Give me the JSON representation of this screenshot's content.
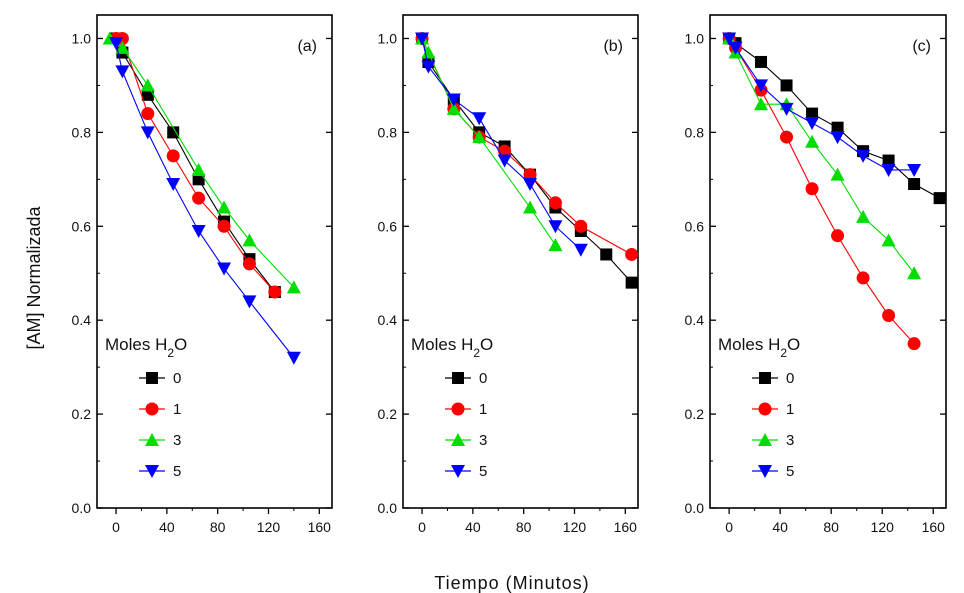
{
  "figure": {
    "ylabel": "[AM] Normalizada",
    "xlabel": "Tiempo (Minutos)",
    "legend_title": "Moles H",
    "legend_title_sub": "2",
    "legend_title_tail": "O"
  },
  "series_style": [
    {
      "name": "0",
      "color": "#000000",
      "marker": "square"
    },
    {
      "name": "1",
      "color": "#ff0000",
      "marker": "circle"
    },
    {
      "name": "3",
      "color": "#00dd00",
      "marker": "triangle-up"
    },
    {
      "name": "5",
      "color": "#0000ff",
      "marker": "triangle-down"
    }
  ],
  "chart_data": [
    {
      "type": "line",
      "panel_label": "(a)",
      "xlim": [
        -15,
        170
      ],
      "ylim": [
        0,
        1.05
      ],
      "xticks": [
        0,
        40,
        80,
        120,
        160
      ],
      "yticks": [
        0.0,
        0.2,
        0.4,
        0.6,
        0.8,
        1.0
      ],
      "legend_placement": "bottom-left",
      "series": [
        {
          "name": "0",
          "x": [
            0,
            5,
            25,
            45,
            65,
            85,
            105,
            125
          ],
          "y": [
            1.0,
            0.97,
            0.88,
            0.8,
            0.7,
            0.61,
            0.53,
            0.46
          ]
        },
        {
          "name": "1",
          "x": [
            0,
            5,
            25,
            45,
            65,
            85,
            105,
            125
          ],
          "y": [
            1.0,
            1.0,
            0.84,
            0.75,
            0.66,
            0.6,
            0.52,
            0.46
          ]
        },
        {
          "name": "3",
          "x": [
            -5,
            5,
            25,
            65,
            85,
            105,
            140
          ],
          "y": [
            1.0,
            0.98,
            0.9,
            0.72,
            0.64,
            0.57,
            0.47
          ]
        },
        {
          "name": "5",
          "x": [
            0,
            5,
            25,
            45,
            65,
            85,
            105,
            140
          ],
          "y": [
            0.99,
            0.93,
            0.8,
            0.69,
            0.59,
            0.51,
            0.44,
            0.32
          ]
        }
      ]
    },
    {
      "type": "line",
      "panel_label": "(b)",
      "xlim": [
        -15,
        170
      ],
      "ylim": [
        0,
        1.05
      ],
      "xticks": [
        0,
        40,
        80,
        120,
        160
      ],
      "yticks": [
        0.0,
        0.2,
        0.4,
        0.6,
        0.8,
        1.0
      ],
      "legend_placement": "bottom-left",
      "series": [
        {
          "name": "0",
          "x": [
            0,
            5,
            25,
            45,
            65,
            85,
            105,
            125,
            145,
            165
          ],
          "y": [
            1.0,
            0.95,
            0.87,
            0.8,
            0.77,
            0.71,
            0.64,
            0.59,
            0.54,
            0.48
          ]
        },
        {
          "name": "1",
          "x": [
            0,
            25,
            45,
            65,
            85,
            105,
            125,
            165
          ],
          "y": [
            1.0,
            0.85,
            0.79,
            0.76,
            0.71,
            0.65,
            0.6,
            0.54
          ]
        },
        {
          "name": "3",
          "x": [
            0,
            5,
            25,
            45,
            85,
            105
          ],
          "y": [
            1.0,
            0.97,
            0.85,
            0.79,
            0.64,
            0.56
          ]
        },
        {
          "name": "5",
          "x": [
            0,
            5,
            25,
            45,
            65,
            85,
            105,
            125
          ],
          "y": [
            1.0,
            0.94,
            0.87,
            0.83,
            0.74,
            0.69,
            0.6,
            0.55
          ]
        }
      ]
    },
    {
      "type": "line",
      "panel_label": "(c)",
      "xlim": [
        -15,
        170
      ],
      "ylim": [
        0,
        1.05
      ],
      "xticks": [
        0,
        40,
        80,
        120,
        160
      ],
      "yticks": [
        0.0,
        0.2,
        0.4,
        0.6,
        0.8,
        1.0
      ],
      "legend_placement": "bottom-left",
      "series": [
        {
          "name": "0",
          "x": [
            0,
            5,
            25,
            45,
            65,
            85,
            105,
            125,
            145,
            165
          ],
          "y": [
            1.0,
            0.99,
            0.95,
            0.9,
            0.84,
            0.81,
            0.76,
            0.74,
            0.69,
            0.66
          ]
        },
        {
          "name": "1",
          "x": [
            0,
            5,
            25,
            45,
            65,
            85,
            105,
            125,
            145
          ],
          "y": [
            1.0,
            0.98,
            0.89,
            0.79,
            0.68,
            0.58,
            0.49,
            0.41,
            0.35
          ]
        },
        {
          "name": "3",
          "x": [
            0,
            5,
            25,
            45,
            65,
            85,
            105,
            125,
            145
          ],
          "y": [
            1.0,
            0.97,
            0.86,
            0.86,
            0.78,
            0.71,
            0.62,
            0.57,
            0.5
          ]
        },
        {
          "name": "5",
          "x": [
            0,
            5,
            25,
            45,
            65,
            85,
            105,
            125,
            145
          ],
          "y": [
            1.0,
            0.98,
            0.9,
            0.85,
            0.82,
            0.79,
            0.75,
            0.72,
            0.72
          ]
        }
      ]
    }
  ]
}
